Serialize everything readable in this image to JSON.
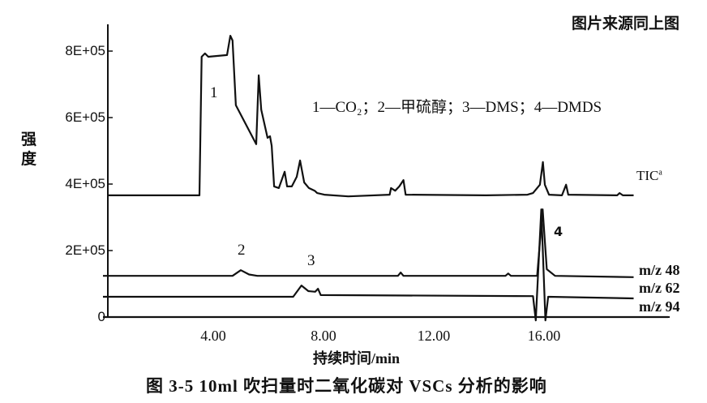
{
  "header": "图片来源同上图",
  "caption": "图 3-5   10ml 吹扫量时二氧化碳对 VSCs 分析的影响",
  "chart_data": {
    "type": "line",
    "title": "",
    "xlabel": "持续时间/min",
    "ylabel": "强度",
    "xlim": [
      0,
      20.5
    ],
    "ylim": [
      0,
      900000
    ],
    "x_ticks": [
      "4.00",
      "8.00",
      "12.00",
      "16.00"
    ],
    "x_tick_values": [
      4,
      8,
      12,
      16
    ],
    "y_ticks": [
      "0",
      "2E+05",
      "4E+05",
      "6E+05",
      "8E+05"
    ],
    "y_tick_values": [
      0,
      200000,
      400000,
      600000,
      800000
    ],
    "grid": false,
    "legend_text": "1—CO₂；2—甲硫醇；3—DMS；4—DMDS",
    "peak_labels": [
      {
        "label": "1",
        "x": 4.0,
        "y": 680000
      },
      {
        "label": "2",
        "x": 5.0,
        "y": 190000
      },
      {
        "label": "3",
        "x": 7.5,
        "y": 160000
      },
      {
        "label": "4",
        "x": 16.5,
        "y": 250000
      }
    ],
    "series": [
      {
        "name": "TIC",
        "label": "TIC",
        "superscript": "a",
        "color": "#111111",
        "points": [
          [
            0.15,
            366000
          ],
          [
            3.5,
            366000
          ],
          [
            3.58,
            783000
          ],
          [
            3.7,
            793000
          ],
          [
            3.82,
            783000
          ],
          [
            4.5,
            788000
          ],
          [
            4.62,
            846000
          ],
          [
            4.7,
            832000
          ],
          [
            4.82,
            637000
          ],
          [
            5.56,
            520000
          ],
          [
            5.65,
            727000
          ],
          [
            5.74,
            624000
          ],
          [
            5.97,
            539000
          ],
          [
            6.06,
            544000
          ],
          [
            6.12,
            515000
          ],
          [
            6.21,
            393000
          ],
          [
            6.38,
            388000
          ],
          [
            6.59,
            437000
          ],
          [
            6.68,
            393000
          ],
          [
            6.85,
            393000
          ],
          [
            7.03,
            422000
          ],
          [
            7.15,
            471000
          ],
          [
            7.3,
            405000
          ],
          [
            7.47,
            388000
          ],
          [
            7.68,
            380000
          ],
          [
            7.77,
            373000
          ],
          [
            8.03,
            368000
          ],
          [
            8.9,
            363000
          ],
          [
            10.4,
            368000
          ],
          [
            10.45,
            388000
          ],
          [
            10.6,
            380000
          ],
          [
            10.75,
            393000
          ],
          [
            10.9,
            412000
          ],
          [
            10.98,
            368000
          ],
          [
            13.9,
            366000
          ],
          [
            15.4,
            368000
          ],
          [
            15.6,
            373000
          ],
          [
            15.85,
            398000
          ],
          [
            15.96,
            466000
          ],
          [
            16.03,
            398000
          ],
          [
            16.18,
            368000
          ],
          [
            16.65,
            366000
          ],
          [
            16.8,
            398000
          ],
          [
            16.88,
            368000
          ],
          [
            18.65,
            366000
          ],
          [
            18.74,
            373000
          ],
          [
            18.86,
            366000
          ],
          [
            19.25,
            366000
          ]
        ]
      },
      {
        "name": "m/z 48",
        "label": "m/z 48",
        "color": "#111111",
        "points": [
          [
            0,
            124000
          ],
          [
            4.7,
            124000
          ],
          [
            5.0,
            141000
          ],
          [
            5.3,
            128000
          ],
          [
            5.6,
            124000
          ],
          [
            10.7,
            124000
          ],
          [
            10.8,
            134000
          ],
          [
            10.9,
            124000
          ],
          [
            14.6,
            124000
          ],
          [
            14.7,
            131000
          ],
          [
            14.8,
            124000
          ],
          [
            15.75,
            124000
          ],
          [
            15.95,
            324000
          ],
          [
            16.1,
            144000
          ],
          [
            16.4,
            124000
          ],
          [
            19.25,
            120000
          ]
        ]
      },
      {
        "name": "m/z 62",
        "label": "m/z 62",
        "color": "#111111",
        "points": [
          [
            0,
            61000
          ],
          [
            6.9,
            61000
          ],
          [
            7.2,
            95000
          ],
          [
            7.45,
            78000
          ],
          [
            7.7,
            76000
          ],
          [
            7.8,
            85000
          ],
          [
            7.9,
            66000
          ],
          [
            15.6,
            63000
          ],
          [
            15.7,
            -10000
          ],
          [
            15.9,
            324000
          ],
          [
            16.05,
            -10000
          ],
          [
            16.15,
            61000
          ],
          [
            19.25,
            56000
          ]
        ]
      },
      {
        "name": "m/z 94",
        "label": "m/z 94",
        "color": "#111111",
        "points": [
          [
            0,
            0
          ],
          [
            20.5,
            0
          ]
        ]
      }
    ]
  }
}
